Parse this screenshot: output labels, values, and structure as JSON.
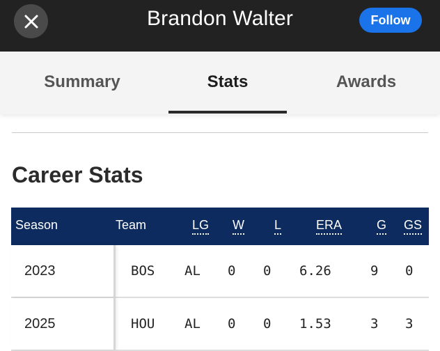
{
  "header": {
    "title": "Brandon Walter",
    "close_icon": "close-icon",
    "follow_label": "Follow",
    "colors": {
      "bar": "#222222",
      "follow": "#1a73e8"
    }
  },
  "tabs": [
    {
      "label": "Summary",
      "active": false
    },
    {
      "label": "Stats",
      "active": true
    },
    {
      "label": "Awards",
      "active": false
    }
  ],
  "section": {
    "title": "Career Stats"
  },
  "table": {
    "header_color": "#0d2b5e",
    "columns": [
      "Season",
      "Team",
      "LG",
      "W",
      "L",
      "ERA",
      "G",
      "GS"
    ],
    "rows": [
      {
        "season": "2023",
        "team": "BOS",
        "lg": "AL",
        "w": "0",
        "l": "0",
        "era": "6.26",
        "g": "9",
        "gs": "0"
      },
      {
        "season": "2025",
        "team": "HOU",
        "lg": "AL",
        "w": "0",
        "l": "0",
        "era": "1.53",
        "g": "3",
        "gs": "3"
      }
    ]
  }
}
